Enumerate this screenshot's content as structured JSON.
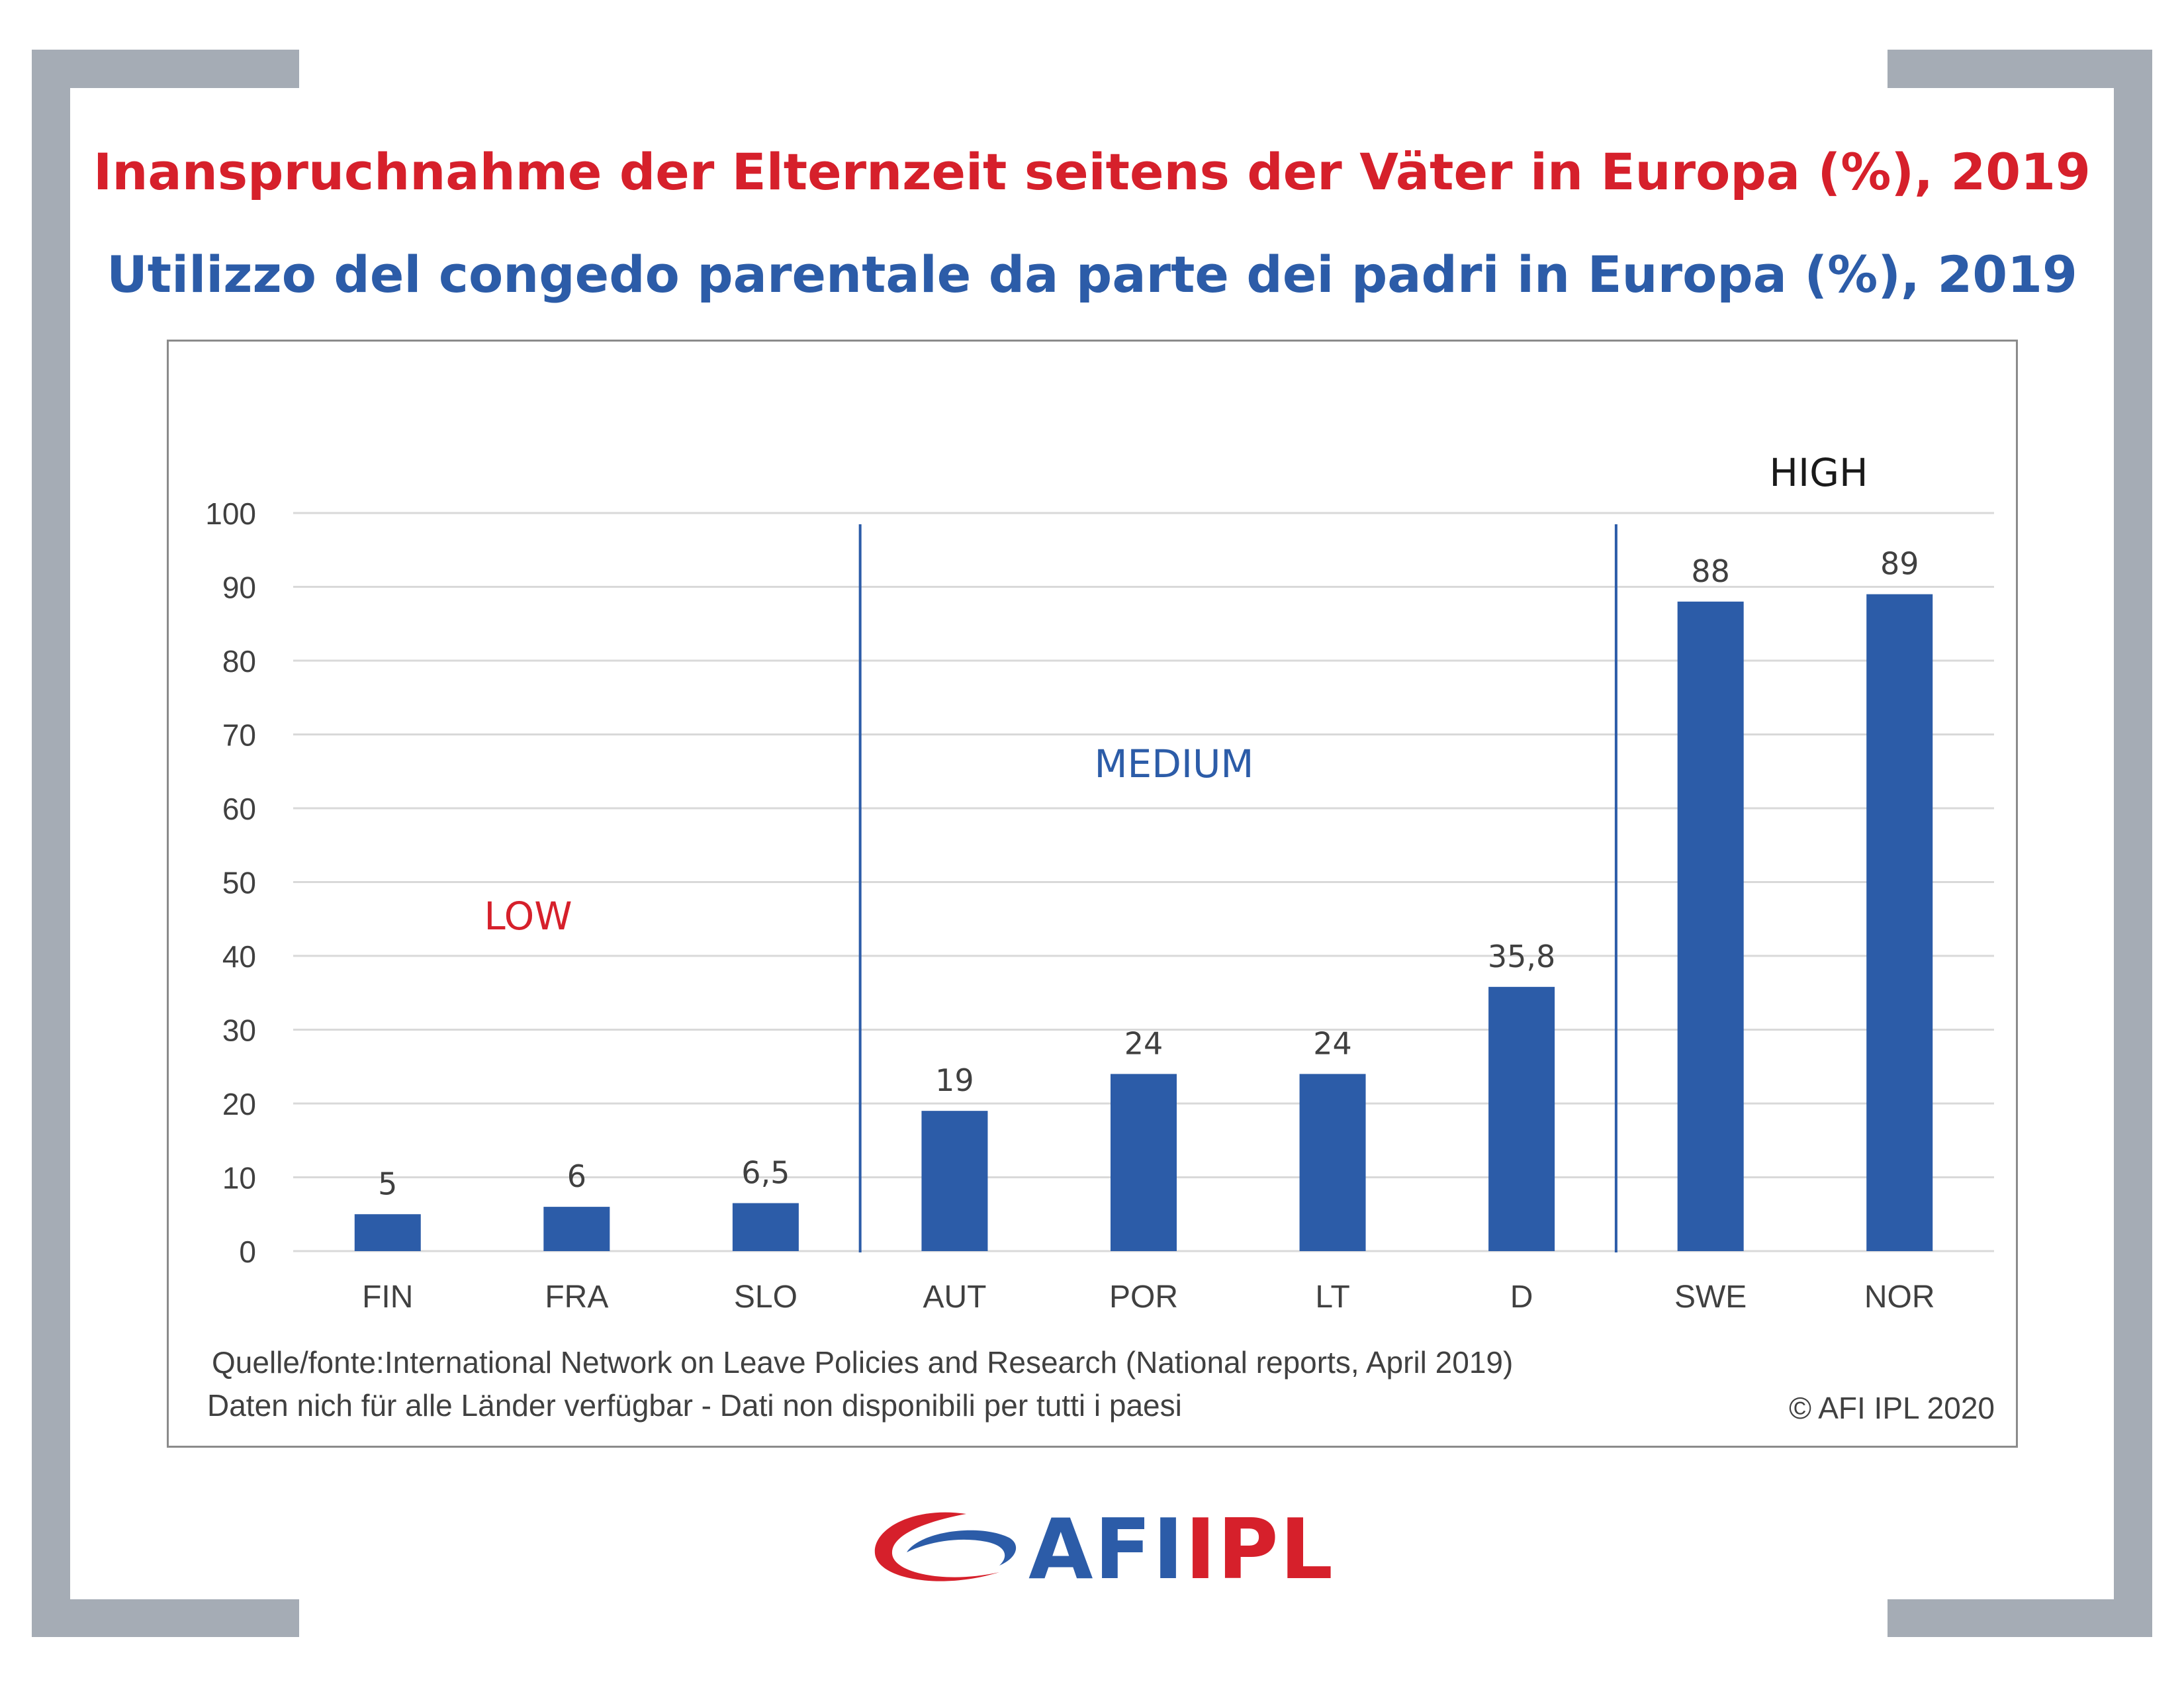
{
  "title_de": "Inanspruchnahme der Elternzeit seitens der Väter in Europa (%), 2019",
  "title_it": "Utilizzo del congedo parentale da parte dei padri in Europa (%), 2019",
  "source_line1": "Quelle/fonte:International Network on Leave Policies and Research (National reports, April 2019)",
  "source_line2": "Daten nich für alle Länder verfügbar - Dati non disponibili per tutti i paesi",
  "copyright": "© AFI IPL 2020",
  "logo": {
    "text_afi": "AFI",
    "text_ipl": "IPL"
  },
  "colors": {
    "bar": "#2c5ca8",
    "title_de": "#d6202b",
    "title_it": "#2c5ca8",
    "low": "#d6202b",
    "medium": "#2c5ca8",
    "high": "#1a1a1a",
    "frame": "#a5acb5"
  },
  "chart_data": {
    "type": "bar",
    "categories": [
      "FIN",
      "FRA",
      "SLO",
      "AUT",
      "POR",
      "LT",
      "D",
      "SWE",
      "NOR"
    ],
    "values": [
      5,
      6,
      6.5,
      19,
      24,
      24,
      35.8,
      88,
      89
    ],
    "data_labels": [
      "5",
      "6",
      "6,5",
      "19",
      "24",
      "24",
      "35,8",
      "88",
      "89"
    ],
    "ylim": [
      0,
      100
    ],
    "yticks": [
      0,
      10,
      20,
      30,
      40,
      50,
      60,
      70,
      80,
      90,
      100
    ],
    "grid": true,
    "groups": [
      {
        "label": "LOW",
        "color": "#d6202b"
      },
      {
        "label": "MEDIUM",
        "color": "#2c5ca8"
      },
      {
        "label": "HIGH",
        "color": "#1a1a1a"
      }
    ]
  }
}
